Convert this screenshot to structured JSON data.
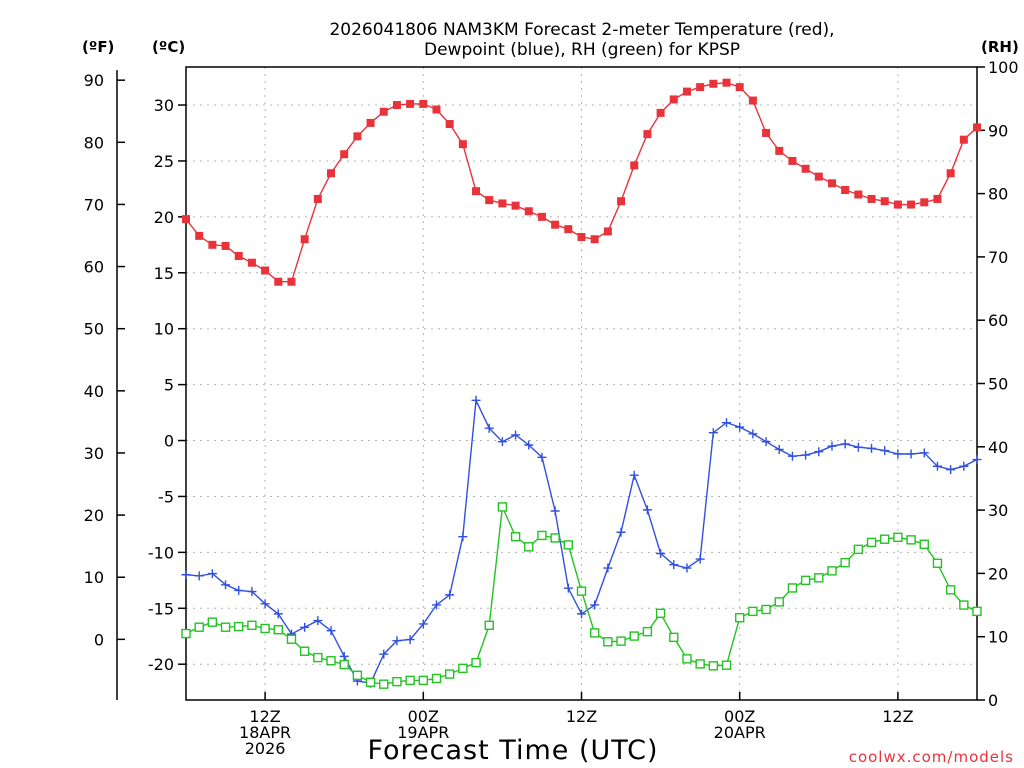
{
  "chart_data": {
    "type": "line",
    "title": [
      "2026041806 NAM3KM Forecast 2-meter Temperature (red),",
      "Dewpoint (blue), RH (green) for KPSP"
    ],
    "xlabel": "Forecast Time (UTC)",
    "units": {
      "fahrenheit": "(ºF)",
      "celsius": "(ºC)",
      "rh": "(RH)"
    },
    "x_ticks": [
      {
        "hour": 6,
        "lines": [
          "12Z",
          "18APR",
          "2026"
        ]
      },
      {
        "hour": 18,
        "lines": [
          "00Z",
          "19APR"
        ]
      },
      {
        "hour": 30,
        "lines": [
          "12Z"
        ]
      },
      {
        "hour": 42,
        "lines": [
          "00Z",
          "20APR"
        ]
      },
      {
        "hour": 54,
        "lines": [
          "12Z"
        ]
      }
    ],
    "xlim": [
      0,
      60
    ],
    "ylim_celsius": [
      -23.2,
      33.4
    ],
    "celsius_ticks": [
      -20,
      -15,
      -10,
      -5,
      0,
      5,
      10,
      15,
      20,
      25,
      30
    ],
    "fahrenheit_ticks": [
      0,
      10,
      20,
      30,
      40,
      50,
      60,
      70,
      80,
      90
    ],
    "ylim_rh": [
      0,
      100
    ],
    "rh_ticks": [
      0,
      10,
      20,
      30,
      40,
      50,
      60,
      70,
      80,
      90,
      100
    ],
    "hours": [
      0,
      1,
      2,
      3,
      4,
      5,
      6,
      7,
      8,
      9,
      10,
      11,
      12,
      13,
      14,
      15,
      16,
      17,
      18,
      19,
      20,
      21,
      22,
      23,
      24,
      25,
      26,
      27,
      28,
      29,
      30,
      31,
      32,
      33,
      34,
      35,
      36,
      37,
      38,
      39,
      40,
      41,
      42,
      43,
      44,
      45,
      46,
      47,
      48,
      49,
      50,
      51,
      52,
      53,
      54,
      55,
      56,
      57,
      58,
      59,
      60
    ],
    "series": [
      {
        "name": "2-meter Temperature (°C)",
        "color": "#e8333a",
        "marker": "filled-square",
        "axis": "celsius",
        "values": [
          19.8,
          18.3,
          17.5,
          17.4,
          16.5,
          15.9,
          15.2,
          14.2,
          14.2,
          18.0,
          21.6,
          23.9,
          25.6,
          27.2,
          28.4,
          29.4,
          30.0,
          30.1,
          30.1,
          29.6,
          28.3,
          26.5,
          22.3,
          21.5,
          21.2,
          21.0,
          20.5,
          20.0,
          19.3,
          18.9,
          18.2,
          18.0,
          18.7,
          21.4,
          24.6,
          27.4,
          29.3,
          30.5,
          31.2,
          31.6,
          31.9,
          32.0,
          31.6,
          30.4,
          27.5,
          25.9,
          25.0,
          24.3,
          23.6,
          23.0,
          22.4,
          22.0,
          21.6,
          21.4,
          21.1,
          21.1,
          21.3,
          21.6,
          23.9,
          26.9,
          28.0
        ]
      },
      {
        "name": "Dewpoint (°C)",
        "color": "#3050e0",
        "marker": "plus",
        "axis": "celsius",
        "values": [
          -12.0,
          -12.1,
          -11.9,
          -12.9,
          -13.4,
          -13.5,
          -14.6,
          -15.5,
          -17.3,
          -16.7,
          -16.1,
          -17.0,
          -19.3,
          -21.5,
          -21.7,
          -19.1,
          -17.9,
          -17.8,
          -16.4,
          -14.7,
          -13.8,
          -8.6,
          3.6,
          1.1,
          -0.1,
          0.5,
          -0.4,
          -1.5,
          -6.3,
          -13.2,
          -15.5,
          -14.7,
          -11.4,
          -8.2,
          -3.1,
          -6.2,
          -10.1,
          -11.1,
          -11.4,
          -10.6,
          0.7,
          1.6,
          1.2,
          0.6,
          -0.1,
          -0.8,
          -1.4,
          -1.3,
          -1.0,
          -0.5,
          -0.3,
          -0.6,
          -0.7,
          -0.9,
          -1.2,
          -1.2,
          -1.1,
          -2.3,
          -2.6,
          -2.3,
          -1.7
        ]
      },
      {
        "name": "RH (%)",
        "color": "#22c322",
        "marker": "open-square",
        "axis": "rh",
        "values": [
          10.5,
          11.5,
          12.3,
          11.5,
          11.6,
          11.8,
          11.3,
          11.1,
          9.6,
          7.7,
          6.7,
          6.2,
          5.6,
          3.9,
          2.8,
          2.5,
          2.9,
          3.1,
          3.1,
          3.4,
          4.1,
          5.0,
          5.9,
          11.8,
          30.5,
          25.8,
          24.2,
          26.0,
          25.6,
          24.5,
          17.2,
          10.6,
          9.2,
          9.3,
          10.1,
          10.8,
          13.7,
          9.9,
          6.5,
          5.7,
          5.4,
          5.5,
          13.0,
          14.0,
          14.3,
          15.5,
          17.7,
          18.9,
          19.3,
          20.4,
          21.7,
          23.8,
          24.9,
          25.4,
          25.7,
          25.3,
          24.6,
          21.6,
          17.4,
          15.0,
          14.0
        ]
      }
    ],
    "credit": "coolwx.com/models"
  }
}
